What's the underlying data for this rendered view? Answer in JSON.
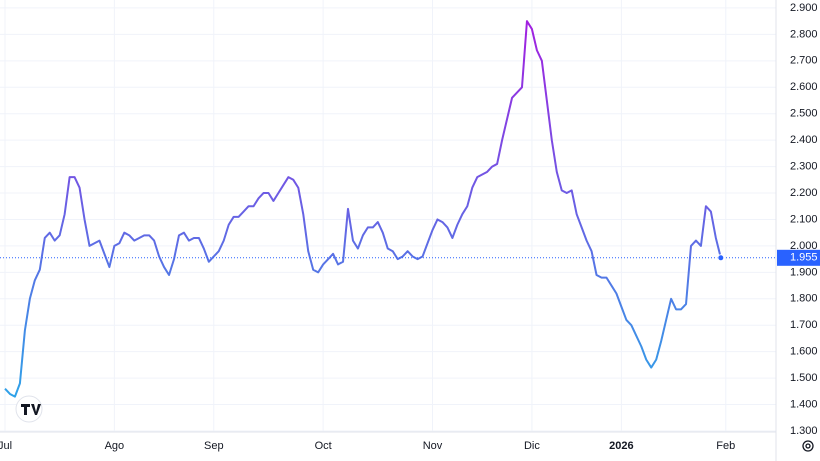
{
  "chart_data": {
    "type": "line",
    "series": [
      {
        "values": [
          1.46,
          1.44,
          1.43,
          1.48,
          1.68,
          1.8,
          1.87,
          1.91,
          2.03,
          2.05,
          2.02,
          2.04,
          2.12,
          2.26,
          2.26,
          2.22,
          2.1,
          2.0,
          2.01,
          2.02,
          1.97,
          1.92,
          2.0,
          2.01,
          2.05,
          2.04,
          2.02,
          2.03,
          2.04,
          2.04,
          2.02,
          1.96,
          1.92,
          1.89,
          1.95,
          2.04,
          2.05,
          2.02,
          2.03,
          2.03,
          1.99,
          1.94,
          1.96,
          1.98,
          2.02,
          2.08,
          2.11,
          2.11,
          2.13,
          2.15,
          2.15,
          2.18,
          2.2,
          2.2,
          2.17,
          2.2,
          2.23,
          2.26,
          2.25,
          2.22,
          2.12,
          1.98,
          1.91,
          1.9,
          1.93,
          1.95,
          1.97,
          1.93,
          1.94,
          2.14,
          2.02,
          1.99,
          2.04,
          2.07,
          2.07,
          2.09,
          2.05,
          1.99,
          1.98,
          1.95,
          1.96,
          1.98,
          1.96,
          1.95,
          1.96,
          2.01,
          2.06,
          2.1,
          2.09,
          2.07,
          2.03,
          2.08,
          2.12,
          2.15,
          2.22,
          2.26,
          2.27,
          2.28,
          2.3,
          2.31,
          2.4,
          2.48,
          2.56,
          2.58,
          2.6,
          2.85,
          2.82,
          2.74,
          2.7,
          2.55,
          2.4,
          2.28,
          2.21,
          2.2,
          2.21,
          2.12,
          2.07,
          2.02,
          1.98,
          1.89,
          1.88,
          1.88,
          1.85,
          1.82,
          1.77,
          1.72,
          1.7,
          1.66,
          1.62,
          1.57,
          1.54,
          1.57,
          1.64,
          1.72,
          1.8,
          1.76,
          1.76,
          1.78,
          2.0,
          2.02,
          2.0,
          2.15,
          2.13,
          2.03,
          1.955
        ],
        "gradient": [
          "#a21fe0",
          "#2ea3e8"
        ]
      }
    ],
    "last_color": "#2962ff",
    "xlim": [
      0,
      155
    ],
    "xticks": [
      {
        "value": 0,
        "label": "Jul"
      },
      {
        "value": 22,
        "label": "Ago"
      },
      {
        "value": 42,
        "label": "Sep"
      },
      {
        "value": 64,
        "label": "Oct"
      },
      {
        "value": 86,
        "label": "Nov"
      },
      {
        "value": 106,
        "label": "Dic"
      },
      {
        "value": 124,
        "label": "2026"
      },
      {
        "value": 145,
        "label": "Feb"
      }
    ],
    "ylim": [
      1.3,
      2.93
    ],
    "yticks": [
      {
        "value": 1.3,
        "label": "1.300"
      },
      {
        "value": 1.4,
        "label": "1.400"
      },
      {
        "value": 1.5,
        "label": "1.500"
      },
      {
        "value": 1.6,
        "label": "1.600"
      },
      {
        "value": 1.7,
        "label": "1.700"
      },
      {
        "value": 1.8,
        "label": "1.800"
      },
      {
        "value": 1.9,
        "label": "1.900"
      },
      {
        "value": 2.0,
        "label": "2.000"
      },
      {
        "value": 2.1,
        "label": "2.100"
      },
      {
        "value": 2.2,
        "label": "2.200"
      },
      {
        "value": 2.3,
        "label": "2.300"
      },
      {
        "value": 2.4,
        "label": "2.400"
      },
      {
        "value": 2.5,
        "label": "2.500"
      },
      {
        "value": 2.6,
        "label": "2.600"
      },
      {
        "value": 2.7,
        "label": "2.700"
      },
      {
        "value": 2.8,
        "label": "2.800"
      },
      {
        "value": 2.9,
        "label": "2.900"
      }
    ],
    "grid": true
  }
}
